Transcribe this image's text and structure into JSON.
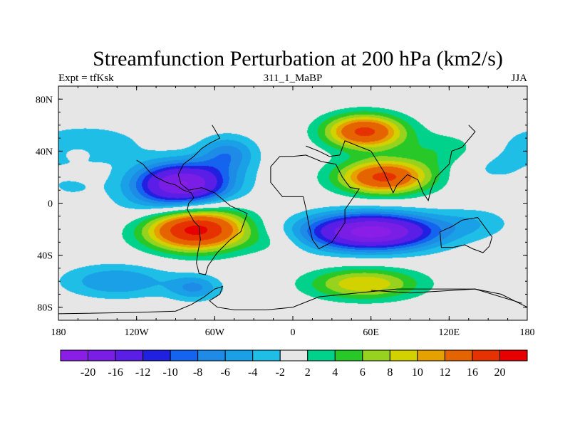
{
  "chart_data": {
    "type": "heatmap",
    "title": "Streamfunction Perturbation at 200 hPa (km2/s)",
    "left_string": "Expt = tfKsk",
    "center_string": "311_1_MaBP",
    "right_string": "JJA",
    "x_range": [
      -180,
      180
    ],
    "y_range": [
      -90,
      90
    ],
    "x_ticks": [
      {
        "value": -180,
        "label": "180"
      },
      {
        "value": -120,
        "label": "120W"
      },
      {
        "value": -60,
        "label": "60W"
      },
      {
        "value": 0,
        "label": "0"
      },
      {
        "value": 60,
        "label": "60E"
      },
      {
        "value": 120,
        "label": "120E"
      },
      {
        "value": 180,
        "label": "180"
      }
    ],
    "y_ticks": [
      {
        "value": 80,
        "label": "80N"
      },
      {
        "value": 40,
        "label": "40N"
      },
      {
        "value": 0,
        "label": "0"
      },
      {
        "value": -40,
        "label": "40S"
      },
      {
        "value": -80,
        "label": "80S"
      }
    ],
    "levels": [
      -20,
      -16,
      -12,
      -10,
      -8,
      -6,
      -4,
      -2,
      2,
      4,
      6,
      8,
      10,
      12,
      16,
      20
    ],
    "level_labels": [
      "-20",
      "-16",
      "-12",
      "-10",
      "-8",
      "-6",
      "-4",
      "-2",
      "2",
      "4",
      "6",
      "8",
      "10",
      "12",
      "16",
      "20"
    ],
    "colors": [
      "#8a1ee6",
      "#7a1ee6",
      "#5a1ee6",
      "#2020e0",
      "#1464f0",
      "#1e8ce6",
      "#19a0e6",
      "#1ebee6",
      "#e6e6e6",
      "#00d28c",
      "#28c828",
      "#96d21e",
      "#d2d200",
      "#e6a000",
      "#e66400",
      "#e63200",
      "#e60000"
    ],
    "anomalies": [
      {
        "lon": -85,
        "lat": 15,
        "amp": -20,
        "slon": 36,
        "slat": 16
      },
      {
        "lon": -50,
        "lat": 38,
        "amp": -7,
        "slon": 22,
        "slat": 14
      },
      {
        "lon": -75,
        "lat": -20,
        "amp": 22,
        "slon": 38,
        "slat": 16
      },
      {
        "lon": -100,
        "lat": -5,
        "amp": -3,
        "slon": 40,
        "slat": 15
      },
      {
        "lon": -160,
        "lat": 45,
        "amp": -4,
        "slon": 45,
        "slat": 15
      },
      {
        "lon": -170,
        "lat": 12,
        "amp": -2,
        "slon": 22,
        "slat": 10
      },
      {
        "lon": 55,
        "lat": 55,
        "amp": 17,
        "slon": 30,
        "slat": 13
      },
      {
        "lon": 70,
        "lat": 20,
        "amp": 17,
        "slon": 35,
        "slat": 13
      },
      {
        "lon": 60,
        "lat": -22,
        "amp": -22,
        "slon": 50,
        "slat": 14
      },
      {
        "lon": 140,
        "lat": -15,
        "amp": -3,
        "slon": 30,
        "slat": 12
      },
      {
        "lon": 55,
        "lat": -62,
        "amp": 10,
        "slon": 42,
        "slat": 12
      },
      {
        "lon": -135,
        "lat": -60,
        "amp": -6,
        "slon": 42,
        "slat": 13
      },
      {
        "lon": -75,
        "lat": -65,
        "amp": -6,
        "slon": 20,
        "slat": 10
      },
      {
        "lon": 150,
        "lat": 30,
        "amp": -3,
        "slon": 30,
        "slat": 15
      },
      {
        "lon": 120,
        "lat": 40,
        "amp": 4,
        "slon": 40,
        "slat": 14
      },
      {
        "lon": -15,
        "lat": -30,
        "amp": 2,
        "slon": 25,
        "slat": 10
      },
      {
        "lon": -165,
        "lat": 38,
        "amp": 4,
        "slon": 8,
        "slat": 4
      }
    ],
    "coastline": [
      [
        [
          -180,
          -85
        ],
        [
          -120,
          -84
        ],
        [
          -90,
          -83
        ],
        [
          -78,
          -78
        ],
        [
          -68,
          -72
        ],
        [
          -60,
          -66
        ],
        [
          -54,
          -64
        ],
        [
          -56,
          -70
        ],
        [
          -64,
          -75
        ],
        [
          -58,
          -80
        ],
        [
          -45,
          -82
        ],
        [
          -20,
          -82
        ],
        [
          0,
          -80
        ],
        [
          20,
          -72
        ],
        [
          40,
          -70
        ],
        [
          60,
          -68
        ],
        [
          80,
          -66
        ],
        [
          100,
          -66
        ],
        [
          120,
          -66
        ],
        [
          140,
          -66
        ],
        [
          160,
          -70
        ],
        [
          170,
          -75
        ],
        [
          180,
          -80
        ]
      ],
      [
        [
          -120,
          33
        ],
        [
          -115,
          30
        ],
        [
          -110,
          24
        ],
        [
          -105,
          20
        ],
        [
          -97,
          16
        ],
        [
          -90,
          14
        ],
        [
          -84,
          10
        ],
        [
          -78,
          8
        ],
        [
          -76,
          4
        ],
        [
          -80,
          0
        ],
        [
          -81,
          -5
        ],
        [
          -76,
          -14
        ],
        [
          -72,
          -18
        ],
        [
          -71,
          -28
        ],
        [
          -73,
          -38
        ],
        [
          -74,
          -46
        ],
        [
          -72,
          -54
        ],
        [
          -67,
          -55
        ],
        [
          -65,
          -48
        ],
        [
          -58,
          -38
        ],
        [
          -48,
          -28
        ],
        [
          -40,
          -22
        ],
        [
          -35,
          -8
        ],
        [
          -48,
          -2
        ],
        [
          -60,
          8
        ],
        [
          -70,
          12
        ],
        [
          -80,
          10
        ],
        [
          -86,
          15
        ],
        [
          -88,
          22
        ],
        [
          -84,
          30
        ],
        [
          -76,
          36
        ],
        [
          -70,
          42
        ],
        [
          -64,
          46
        ],
        [
          -56,
          50
        ],
        [
          -62,
          60
        ]
      ],
      [
        [
          -10,
          36
        ],
        [
          -17,
          28
        ],
        [
          -17,
          16
        ],
        [
          -8,
          5
        ],
        [
          8,
          5
        ],
        [
          10,
          -4
        ],
        [
          12,
          -15
        ],
        [
          15,
          -28
        ],
        [
          20,
          -35
        ],
        [
          30,
          -30
        ],
        [
          40,
          -15
        ],
        [
          40,
          -5
        ],
        [
          51,
          11
        ],
        [
          44,
          12
        ],
        [
          38,
          20
        ],
        [
          33,
          30
        ],
        [
          22,
          32
        ],
        [
          10,
          37
        ],
        [
          0,
          36
        ],
        [
          -10,
          36
        ]
      ],
      [
        [
          10,
          44
        ],
        [
          20,
          40
        ],
        [
          28,
          36
        ],
        [
          36,
          37
        ],
        [
          40,
          48
        ],
        [
          50,
          44
        ],
        [
          60,
          40
        ],
        [
          70,
          24
        ],
        [
          77,
          8
        ],
        [
          80,
          14
        ],
        [
          88,
          22
        ],
        [
          96,
          18
        ],
        [
          100,
          8
        ],
        [
          104,
          2
        ],
        [
          106,
          10
        ],
        [
          110,
          20
        ],
        [
          120,
          30
        ],
        [
          122,
          40
        ],
        [
          130,
          43
        ],
        [
          140,
          55
        ],
        [
          135,
          60
        ]
      ],
      [
        [
          113,
          -22
        ],
        [
          114,
          -34
        ],
        [
          123,
          -34
        ],
        [
          132,
          -32
        ],
        [
          138,
          -35
        ],
        [
          146,
          -38
        ],
        [
          151,
          -33
        ],
        [
          153,
          -26
        ],
        [
          145,
          -15
        ],
        [
          142,
          -11
        ],
        [
          136,
          -12
        ],
        [
          130,
          -13
        ],
        [
          122,
          -18
        ],
        [
          113,
          -22
        ]
      ],
      [
        [
          60,
          -67
        ],
        [
          90,
          -69
        ],
        [
          140,
          -66
        ],
        [
          176,
          -77
        ]
      ]
    ]
  }
}
